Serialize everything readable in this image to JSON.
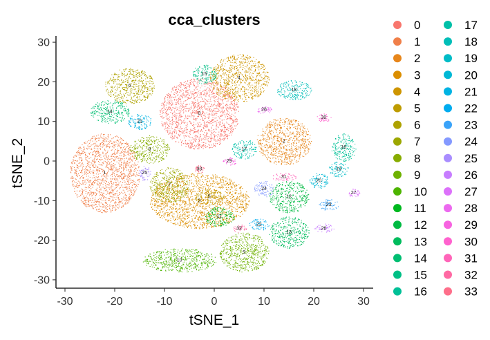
{
  "chart_data": {
    "type": "scatter",
    "title": "cca_clusters",
    "xlabel": "tSNE_1",
    "ylabel": "tSNE_2",
    "xlim": [
      -32,
      32
    ],
    "ylim": [
      -32,
      31
    ],
    "xticks": [
      "-30",
      "-20",
      "-10",
      "0",
      "10",
      "20",
      "30"
    ],
    "yticks": [
      "-30",
      "-20",
      "-10",
      "0",
      "10",
      "20",
      "30"
    ],
    "grid": false,
    "legend_position": "right",
    "legend_columns": 2,
    "clusters": [
      {
        "name": "0",
        "color": "#F8766D",
        "cx": -3,
        "cy": 12,
        "rx": 8,
        "ry": 9
      },
      {
        "name": "1",
        "color": "#F07F49",
        "cx": -22,
        "cy": -3,
        "rx": 7,
        "ry": 10
      },
      {
        "name": "2",
        "color": "#E7861B",
        "cx": 14,
        "cy": 5,
        "rx": 5.5,
        "ry": 6
      },
      {
        "name": "3",
        "color": "#DB8E00",
        "cx": -3,
        "cy": -10,
        "rx": 10,
        "ry": 7
      },
      {
        "name": "4",
        "color": "#CE9500",
        "cx": 5,
        "cy": 21,
        "rx": 6,
        "ry": 6
      },
      {
        "name": "5",
        "color": "#BE9C00",
        "cx": -1,
        "cy": -9,
        "rx": 3,
        "ry": 2
      },
      {
        "name": "6",
        "color": "#AEA200",
        "cx": -17,
        "cy": 19,
        "rx": 5,
        "ry": 4.5
      },
      {
        "name": "7",
        "color": "#9CA700",
        "cx": -9,
        "cy": -6,
        "rx": 4,
        "ry": 4.5
      },
      {
        "name": "8",
        "color": "#87AC00",
        "cx": -13,
        "cy": 3,
        "rx": 4,
        "ry": 3.5
      },
      {
        "name": "9",
        "color": "#6EB100",
        "cx": 6,
        "cy": -23,
        "rx": 5,
        "ry": 5
      },
      {
        "name": "10",
        "color": "#4DB400",
        "cx": -7,
        "cy": -25,
        "rx": 7.5,
        "ry": 3
      },
      {
        "name": "11",
        "color": "#00B81F",
        "cx": 1,
        "cy": -14,
        "rx": 3,
        "ry": 2.5
      },
      {
        "name": "12",
        "color": "#00BA42",
        "cx": 15,
        "cy": -9,
        "rx": 4,
        "ry": 4
      },
      {
        "name": "13",
        "color": "#00BC5D",
        "cx": 15,
        "cy": -18,
        "rx": 4,
        "ry": 4
      },
      {
        "name": "14",
        "color": "#00BE72",
        "cx": -21,
        "cy": 12.5,
        "rx": 4,
        "ry": 3
      },
      {
        "name": "15",
        "color": "#00BF85",
        "cx": -2,
        "cy": 22,
        "rx": 2.5,
        "ry": 2.5
      },
      {
        "name": "16",
        "color": "#00C097",
        "cx": 26,
        "cy": 3.5,
        "rx": 2.5,
        "ry": 3.5
      },
      {
        "name": "17",
        "color": "#00C0A8",
        "cx": 6,
        "cy": 3,
        "rx": 2.5,
        "ry": 2.5
      },
      {
        "name": "18",
        "color": "#00BEB8",
        "cx": 16,
        "cy": 18,
        "rx": 3.5,
        "ry": 2.5
      },
      {
        "name": "19",
        "color": "#00BCC7",
        "cx": 25,
        "cy": -2,
        "rx": 2,
        "ry": 2
      },
      {
        "name": "20",
        "color": "#00B8D5",
        "cx": 21,
        "cy": -5,
        "rx": 2,
        "ry": 2
      },
      {
        "name": "21",
        "color": "#00B3E3",
        "cx": -15,
        "cy": 10,
        "rx": 2.5,
        "ry": 2
      },
      {
        "name": "22",
        "color": "#00ACEF",
        "cx": 9,
        "cy": -16,
        "rx": 2,
        "ry": 1.5
      },
      {
        "name": "23",
        "color": "#3AA3F9",
        "cx": 23,
        "cy": -11,
        "rx": 2,
        "ry": 1.5
      },
      {
        "name": "24",
        "color": "#8499FF",
        "cx": 10,
        "cy": -7,
        "rx": 2,
        "ry": 2
      },
      {
        "name": "25",
        "color": "#A98DFF",
        "cx": -14,
        "cy": -3,
        "rx": 1.2,
        "ry": 2
      },
      {
        "name": "26",
        "color": "#C77DFF",
        "cx": 22,
        "cy": -17,
        "rx": 2,
        "ry": 1.2
      },
      {
        "name": "27",
        "color": "#DC71FA",
        "cx": 28,
        "cy": -8,
        "rx": 1.2,
        "ry": 1
      },
      {
        "name": "28",
        "color": "#EC69EF",
        "cx": 10,
        "cy": 13,
        "rx": 1.5,
        "ry": 1
      },
      {
        "name": "29",
        "color": "#F763E0",
        "cx": 3,
        "cy": 0,
        "rx": 1.5,
        "ry": 1
      },
      {
        "name": "30",
        "color": "#FF62CE",
        "cx": 22,
        "cy": 11,
        "rx": 1.5,
        "ry": 1
      },
      {
        "name": "31",
        "color": "#FF65B9",
        "cx": 14,
        "cy": -4,
        "rx": 2.5,
        "ry": 1
      },
      {
        "name": "32",
        "color": "#FF69A3",
        "cx": 5,
        "cy": -17,
        "rx": 1.5,
        "ry": 1
      },
      {
        "name": "33",
        "color": "#FE6E8A",
        "cx": -3,
        "cy": -2,
        "rx": 1,
        "ry": 1
      }
    ]
  }
}
